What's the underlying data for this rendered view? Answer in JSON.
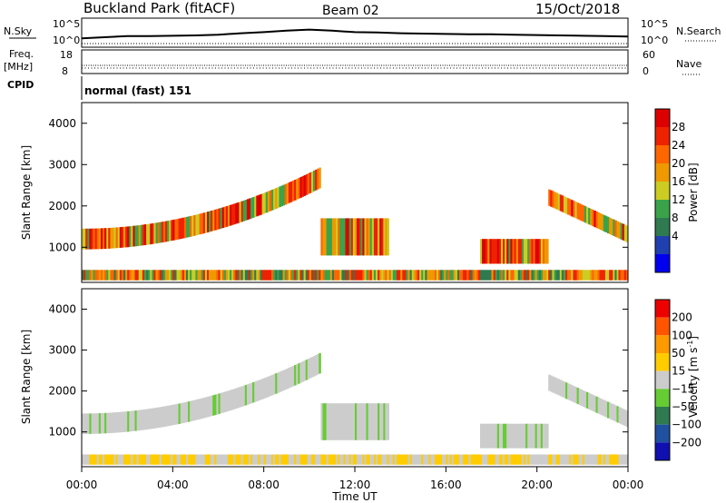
{
  "header": {
    "title": "Buckland Park (fitACF)",
    "beam": "Beam 02",
    "date": "15/Oct/2018"
  },
  "side_labels": {
    "nsky": "N.Sky",
    "freq": "Freq.",
    "freq_unit": "[MHz]",
    "cpid": "CPID",
    "nsearch": "N.Search",
    "nave": "Nave"
  },
  "cpid_text": "normal (fast) 151",
  "chart_data": [
    {
      "type": "line",
      "name": "noise",
      "left_ticks": [
        "10^5",
        "10^0"
      ],
      "right_ticks": [
        "10^5",
        "10^0"
      ],
      "x": [
        "00:00",
        "01:00",
        "02:00",
        "03:00",
        "04:00",
        "05:00",
        "06:00",
        "07:00",
        "08:00",
        "09:00",
        "10:00",
        "11:00",
        "12:00",
        "13:00",
        "14:00",
        "15:00",
        "16:00",
        "17:00",
        "18:00",
        "19:00",
        "20:00",
        "21:00",
        "22:00",
        "23:00",
        "24:00"
      ],
      "values": [
        1.2,
        1.5,
        1.8,
        1.8,
        1.9,
        2.0,
        2.2,
        2.6,
        2.9,
        3.3,
        3.6,
        3.3,
        2.9,
        2.8,
        2.6,
        2.5,
        2.4,
        2.3,
        2.3,
        2.2,
        2.1,
        2.0,
        1.9,
        1.8,
        1.7
      ]
    },
    {
      "type": "line",
      "name": "freq-nave",
      "left_ticks": [
        "18",
        "8"
      ],
      "right_ticks": [
        "60",
        "0"
      ],
      "x_range": [
        "00:00",
        "24:00"
      ],
      "freq_mhz": 10.5
    },
    {
      "type": "heatmap",
      "name": "power",
      "ylabel": "Slant Range [km]",
      "y_ticks": [
        1000,
        2000,
        3000,
        4000
      ],
      "ylim": [
        150,
        4500
      ],
      "colorbar_label": "Power [dB]",
      "colorbar_ticks": [
        4,
        8,
        12,
        16,
        20,
        24,
        28
      ],
      "colors": [
        "#0000ee",
        "#2040b0",
        "#2f7a50",
        "#3aa34a",
        "#cccc22",
        "#ee9900",
        "#ff6600",
        "#ee2200",
        "#dd0000"
      ]
    },
    {
      "type": "heatmap",
      "name": "velocity",
      "ylabel": "Slant Range [km]",
      "y_ticks": [
        1000,
        2000,
        3000,
        4000
      ],
      "ylim": [
        150,
        4500
      ],
      "colorbar_label": "Velocity [m s",
      "colorbar_label_sup": "-1",
      "colorbar_label_end": "]",
      "colorbar_ticks": [
        "200",
        "100",
        "50",
        "15",
        "−15",
        "−50",
        "−100",
        "−200"
      ],
      "colors": [
        "#1010b0",
        "#2050a0",
        "#2f7a50",
        "#66cc33",
        "#cccccc",
        "#ffcc00",
        "#ff9900",
        "#ff5500",
        "#ee0000"
      ],
      "xlabel": "Time UT",
      "x_ticks": [
        "00:00",
        "04:00",
        "08:00",
        "12:00",
        "16:00",
        "20:00",
        "00:00"
      ],
      "bands": [
        {
          "name": "ground-scatter",
          "t": [
            0,
            24
          ],
          "r": [
            200,
            450
          ]
        },
        {
          "name": "main-arc",
          "t": [
            0,
            10.5
          ],
          "r": [
            900,
            2800
          ]
        },
        {
          "name": "patch-12h",
          "t": [
            10.5,
            13.5
          ],
          "r": [
            800,
            1700
          ]
        },
        {
          "name": "patch-18h",
          "t": [
            17.5,
            20.5
          ],
          "r": [
            600,
            1200
          ]
        },
        {
          "name": "evening-arc",
          "t": [
            20.5,
            24
          ],
          "r": [
            1000,
            2300
          ]
        }
      ]
    }
  ]
}
